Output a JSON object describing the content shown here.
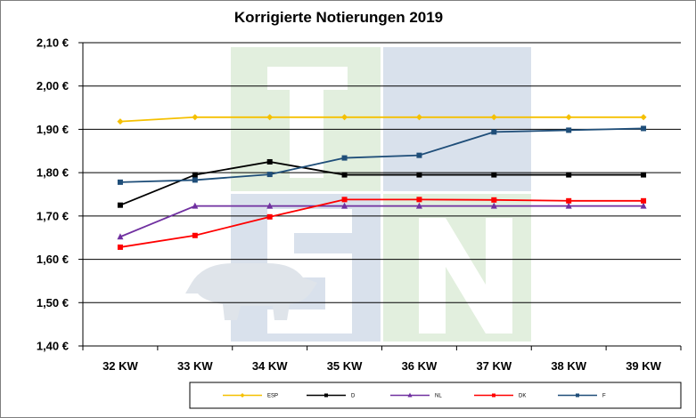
{
  "chart_data": {
    "type": "line",
    "title": "Korrigierte Notierungen 2019",
    "xlabel": "",
    "ylabel": "",
    "categories": [
      "32 KW",
      "33 KW",
      "34 KW",
      "35 KW",
      "36 KW",
      "37 KW",
      "38 KW",
      "39 KW"
    ],
    "y_ticks": [
      "1,40 €",
      "1,50 €",
      "1,60 €",
      "1,70 €",
      "1,80 €",
      "1,90 €",
      "2,00 €",
      "2,10 €"
    ],
    "ylim": [
      1.4,
      2.1
    ],
    "grid": true,
    "legend_position": "bottom",
    "series": [
      {
        "name": "ESP",
        "color": "#f5c000",
        "marker": "diamond",
        "values": [
          1.918,
          1.928,
          1.928,
          1.928,
          1.928,
          1.928,
          1.928,
          1.928
        ]
      },
      {
        "name": "D",
        "color": "#000000",
        "marker": "square",
        "values": [
          1.725,
          1.795,
          1.825,
          1.795,
          1.795,
          1.795,
          1.795,
          1.795
        ]
      },
      {
        "name": "NL",
        "color": "#7030a0",
        "marker": "triangle",
        "values": [
          1.652,
          1.723,
          1.723,
          1.723,
          1.723,
          1.723,
          1.723,
          1.723
        ]
      },
      {
        "name": "DK",
        "color": "#ff0000",
        "marker": "square",
        "values": [
          1.628,
          1.655,
          1.698,
          1.738,
          1.738,
          1.737,
          1.735,
          1.735
        ]
      },
      {
        "name": "F",
        "color": "#1f4e79",
        "marker": "square",
        "values": [
          1.778,
          1.783,
          1.796,
          1.834,
          1.84,
          1.894,
          1.898,
          1.902
        ]
      }
    ]
  }
}
